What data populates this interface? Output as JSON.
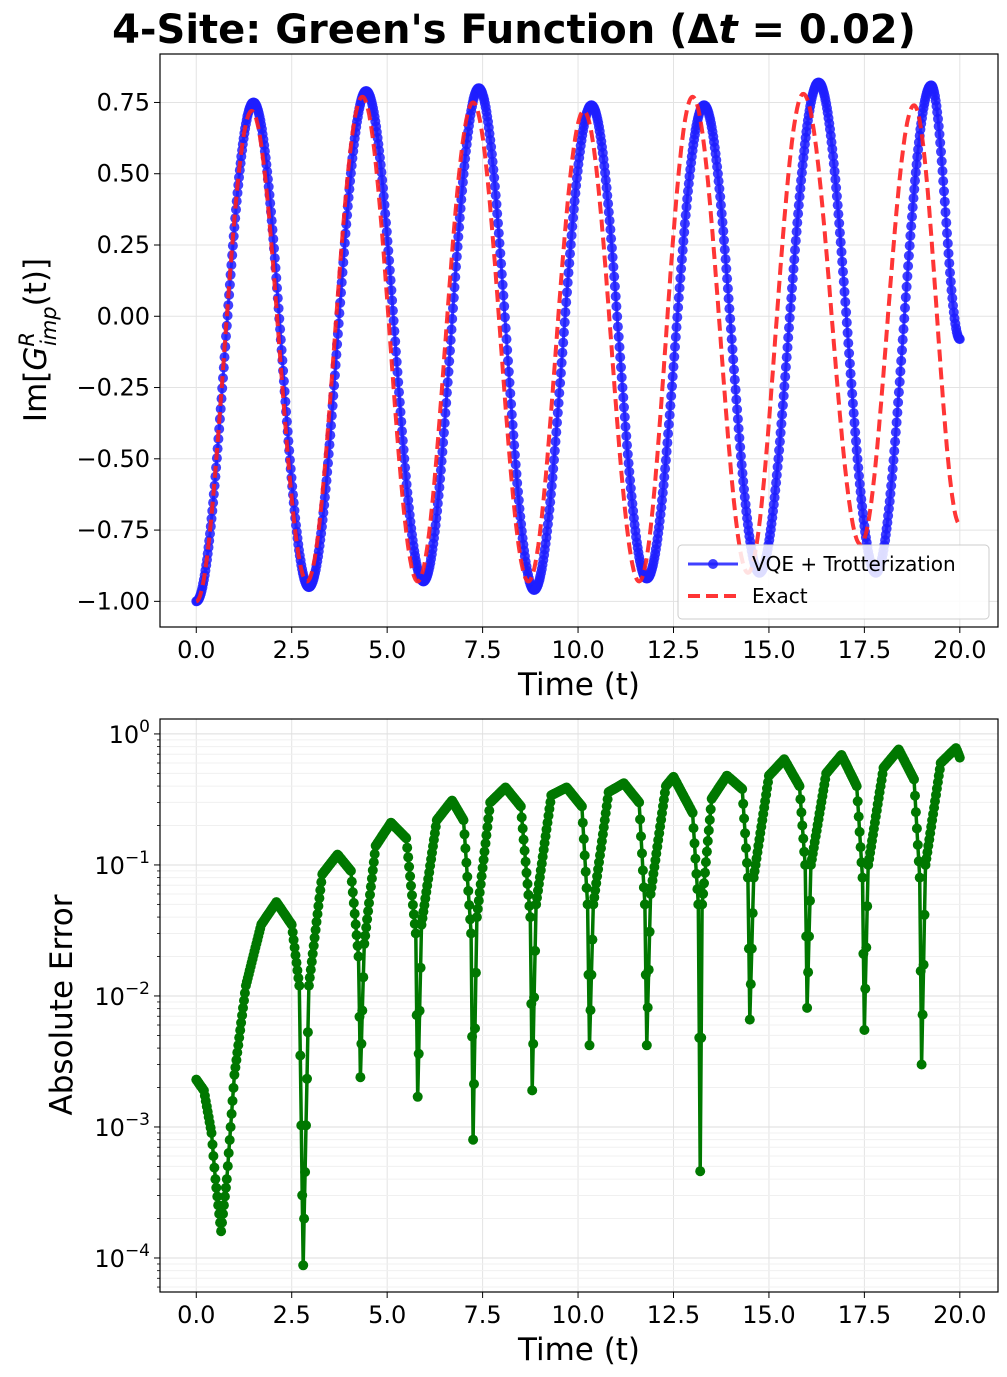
{
  "chart_data": [
    {
      "type": "line",
      "title": "4-Site: Green's Function (Δt = 0.02)",
      "title_parts": {
        "prefix": "4-Site: Green's Function (Δ",
        "var": "t",
        "suffix": " = 0.02)"
      },
      "xlabel": "Time (t)",
      "ylabel": "Im[G^R_imp(t)]",
      "ylabel_parts": {
        "a": "Im[",
        "b": "G",
        "sup": "R",
        "sub": "imp",
        "c": "(t)]"
      },
      "xlim": [
        -0.95,
        21.0
      ],
      "ylim": [
        -1.09,
        0.92
      ],
      "x_ticks": [
        "0.0",
        "2.5",
        "5.0",
        "7.5",
        "10.0",
        "12.5",
        "15.0",
        "17.5",
        "20.0"
      ],
      "y_ticks": [
        "−1.00",
        "−0.75",
        "−0.50",
        "−0.25",
        "0.00",
        "0.25",
        "0.50",
        "0.75"
      ],
      "grid": true,
      "legend_position": "lower-right",
      "series": [
        {
          "name": "VQE + Trotterization",
          "style": "line-with-markers",
          "color": "#1f1fff",
          "points": [
            [
              0.0,
              -1.0
            ],
            [
              1.5,
              0.75
            ],
            [
              2.95,
              -0.95
            ],
            [
              4.45,
              0.79
            ],
            [
              5.95,
              -0.93
            ],
            [
              7.4,
              0.8
            ],
            [
              8.85,
              -0.96
            ],
            [
              10.35,
              0.74
            ],
            [
              11.8,
              -0.92
            ],
            [
              13.3,
              0.74
            ],
            [
              14.75,
              -0.9
            ],
            [
              16.3,
              0.82
            ],
            [
              17.8,
              -0.9
            ],
            [
              19.25,
              0.81
            ],
            [
              20.0,
              -0.08
            ]
          ]
        },
        {
          "name": "Exact",
          "style": "dashed",
          "color": "#ff1f1f",
          "points": [
            [
              0.0,
              -1.0
            ],
            [
              1.45,
              0.72
            ],
            [
              2.9,
              -0.93
            ],
            [
              4.35,
              0.77
            ],
            [
              5.8,
              -0.93
            ],
            [
              7.25,
              0.75
            ],
            [
              8.7,
              -0.93
            ],
            [
              10.15,
              0.72
            ],
            [
              11.6,
              -0.93
            ],
            [
              13.0,
              0.77
            ],
            [
              14.45,
              -0.9
            ],
            [
              15.9,
              0.78
            ],
            [
              17.4,
              -0.8
            ],
            [
              18.8,
              0.74
            ],
            [
              20.0,
              -0.73
            ]
          ]
        }
      ]
    },
    {
      "type": "line",
      "xlabel": "Time (t)",
      "ylabel": "Absolute Error",
      "xlim": [
        -0.95,
        21.0
      ],
      "yscale": "log",
      "ylim": [
        5.5e-05,
        1.3
      ],
      "x_ticks": [
        "0.0",
        "2.5",
        "5.0",
        "7.5",
        "10.0",
        "12.5",
        "15.0",
        "17.5",
        "20.0"
      ],
      "y_ticks": [
        {
          "base": "10",
          "exp": "0"
        },
        {
          "base": "10",
          "exp": "−1"
        },
        {
          "base": "10",
          "exp": "−2"
        },
        {
          "base": "10",
          "exp": "−3"
        },
        {
          "base": "10",
          "exp": "−4"
        }
      ],
      "grid": true,
      "series": [
        {
          "style": "line-with-markers",
          "color": "#007800",
          "points": [
            [
              0.0,
              0.0023
            ],
            [
              0.2,
              0.0019
            ],
            [
              0.4,
              0.0009
            ],
            [
              0.5,
              0.0004
            ],
            [
              0.65,
              0.00016
            ],
            [
              0.8,
              0.0004
            ],
            [
              1.0,
              0.0025
            ],
            [
              1.3,
              0.012
            ],
            [
              1.7,
              0.035
            ],
            [
              2.1,
              0.052
            ],
            [
              2.5,
              0.035
            ],
            [
              2.7,
              0.012
            ],
            [
              2.8,
              8.8e-05
            ],
            [
              2.95,
              0.012
            ],
            [
              3.3,
              0.085
            ],
            [
              3.7,
              0.12
            ],
            [
              4.05,
              0.09
            ],
            [
              4.25,
              0.02
            ],
            [
              4.3,
              0.0024
            ],
            [
              4.4,
              0.025
            ],
            [
              4.7,
              0.14
            ],
            [
              5.1,
              0.21
            ],
            [
              5.5,
              0.16
            ],
            [
              5.75,
              0.03
            ],
            [
              5.8,
              0.0017
            ],
            [
              5.9,
              0.035
            ],
            [
              6.3,
              0.22
            ],
            [
              6.7,
              0.31
            ],
            [
              7.0,
              0.22
            ],
            [
              7.2,
              0.03
            ],
            [
              7.25,
              0.0008
            ],
            [
              7.35,
              0.04
            ],
            [
              7.7,
              0.3
            ],
            [
              8.1,
              0.39
            ],
            [
              8.5,
              0.28
            ],
            [
              8.75,
              0.04
            ],
            [
              8.8,
              0.0019
            ],
            [
              8.9,
              0.05
            ],
            [
              9.3,
              0.34
            ],
            [
              9.7,
              0.39
            ],
            [
              10.1,
              0.28
            ],
            [
              10.25,
              0.05
            ],
            [
              10.3,
              0.0042
            ],
            [
              10.4,
              0.05
            ],
            [
              10.8,
              0.36
            ],
            [
              11.2,
              0.42
            ],
            [
              11.6,
              0.3
            ],
            [
              11.75,
              0.05
            ],
            [
              11.8,
              0.0042
            ],
            [
              11.9,
              0.06
            ],
            [
              12.3,
              0.4
            ],
            [
              12.5,
              0.47
            ],
            [
              13.0,
              0.25
            ],
            [
              13.15,
              0.05
            ],
            [
              13.2,
              0.00046
            ],
            [
              13.25,
              0.05
            ],
            [
              13.5,
              0.32
            ],
            [
              13.9,
              0.48
            ],
            [
              14.3,
              0.38
            ],
            [
              14.45,
              0.08
            ],
            [
              14.5,
              0.0066
            ],
            [
              14.6,
              0.08
            ],
            [
              15.0,
              0.48
            ],
            [
              15.4,
              0.64
            ],
            [
              15.8,
              0.4
            ],
            [
              15.95,
              0.1
            ],
            [
              16.0,
              0.0081
            ],
            [
              16.1,
              0.1
            ],
            [
              16.5,
              0.5
            ],
            [
              16.9,
              0.69
            ],
            [
              17.3,
              0.4
            ],
            [
              17.45,
              0.08
            ],
            [
              17.5,
              0.0055
            ],
            [
              17.6,
              0.1
            ],
            [
              18.0,
              0.55
            ],
            [
              18.4,
              0.76
            ],
            [
              18.8,
              0.45
            ],
            [
              18.95,
              0.08
            ],
            [
              19.0,
              0.003
            ],
            [
              19.1,
              0.1
            ],
            [
              19.5,
              0.6
            ],
            [
              19.9,
              0.78
            ],
            [
              20.0,
              0.66
            ]
          ]
        }
      ]
    }
  ]
}
